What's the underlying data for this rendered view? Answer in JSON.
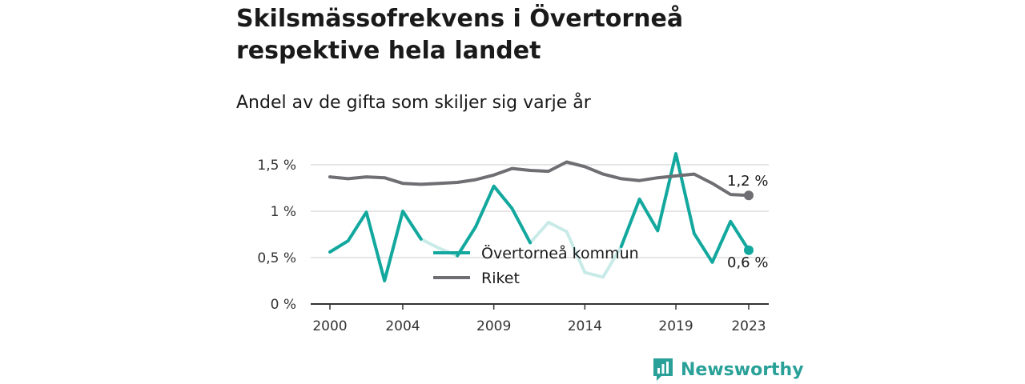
{
  "header": {
    "title": "Skilsmässofrekvens i Övertorneå respektive hela landet",
    "subtitle": "Andel av de gifta som skiljer sig varje år"
  },
  "brand": {
    "name": "Newsworthy",
    "icon": "bar-chart-speech-bubble-icon",
    "color": "#2aa198"
  },
  "chart_data": {
    "type": "line",
    "title": "Skilsmässofrekvens i Övertorneå respektive hela landet",
    "subtitle": "Andel av de gifta som skiljer sig varje år",
    "x": [
      2000,
      2001,
      2002,
      2003,
      2004,
      2005,
      2006,
      2007,
      2008,
      2009,
      2010,
      2011,
      2012,
      2013,
      2014,
      2015,
      2016,
      2017,
      2018,
      2019,
      2020,
      2021,
      2022,
      2023
    ],
    "x_ticks": [
      "2000",
      "2004",
      "2009",
      "2014",
      "2019",
      "2023"
    ],
    "y_ticks": [
      "0 %",
      "0,5 %",
      "1 %",
      "1,5 %"
    ],
    "y_tick_values": [
      0,
      0.5,
      1,
      1.5
    ],
    "ylim": [
      0,
      1.7
    ],
    "grid": true,
    "legend_position": "center",
    "series": [
      {
        "name": "Övertorneå kommun",
        "color": "#13a89e",
        "faded_color": "#c8ebe8",
        "values": [
          0.56,
          0.68,
          0.99,
          0.25,
          1.0,
          0.7,
          0.6,
          0.52,
          0.83,
          1.27,
          1.03,
          0.66,
          0.88,
          0.78,
          0.34,
          0.29,
          0.62,
          1.13,
          0.79,
          1.62,
          0.76,
          0.45,
          0.89,
          0.58
        ],
        "end_label": "0,6 %"
      },
      {
        "name": "Riket",
        "color": "#6e6e73",
        "values": [
          1.37,
          1.35,
          1.37,
          1.36,
          1.3,
          1.29,
          1.3,
          1.31,
          1.34,
          1.39,
          1.46,
          1.44,
          1.43,
          1.53,
          1.48,
          1.4,
          1.35,
          1.33,
          1.36,
          1.38,
          1.4,
          1.3,
          1.18,
          1.17
        ],
        "end_label": "1,2 %"
      }
    ]
  }
}
